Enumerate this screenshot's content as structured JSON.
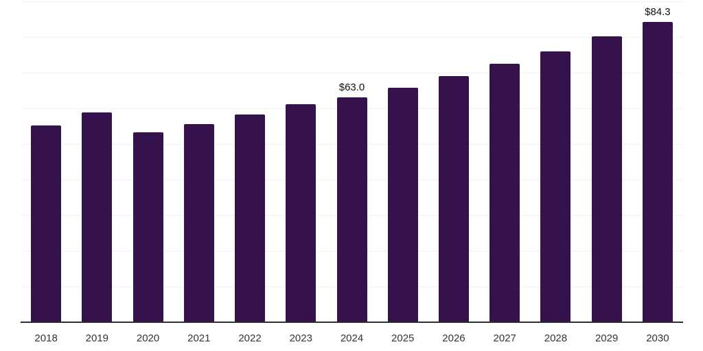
{
  "chart_data": {
    "type": "bar",
    "title": "",
    "xlabel": "",
    "ylabel": "",
    "categories": [
      "2018",
      "2019",
      "2020",
      "2021",
      "2022",
      "2023",
      "2024",
      "2025",
      "2026",
      "2027",
      "2028",
      "2029",
      "2030"
    ],
    "values": [
      55.2,
      58.8,
      53.3,
      55.6,
      58.3,
      61.2,
      63.0,
      65.8,
      69.0,
      72.5,
      76.0,
      80.2,
      84.3
    ],
    "data_labels": [
      {
        "category": "2024",
        "text": "$63.0"
      },
      {
        "category": "2030",
        "text": "$84.3"
      }
    ],
    "ylim": [
      0,
      90
    ],
    "grid_step": 10,
    "grid_on": true,
    "legend": "none",
    "colors": {
      "bar": "#36124D",
      "gridline": "#f0f0f0",
      "axis_line": "#2e2e2e",
      "tick_label": "#333333",
      "data_label": "#111111",
      "background": "#ffffff"
    }
  }
}
